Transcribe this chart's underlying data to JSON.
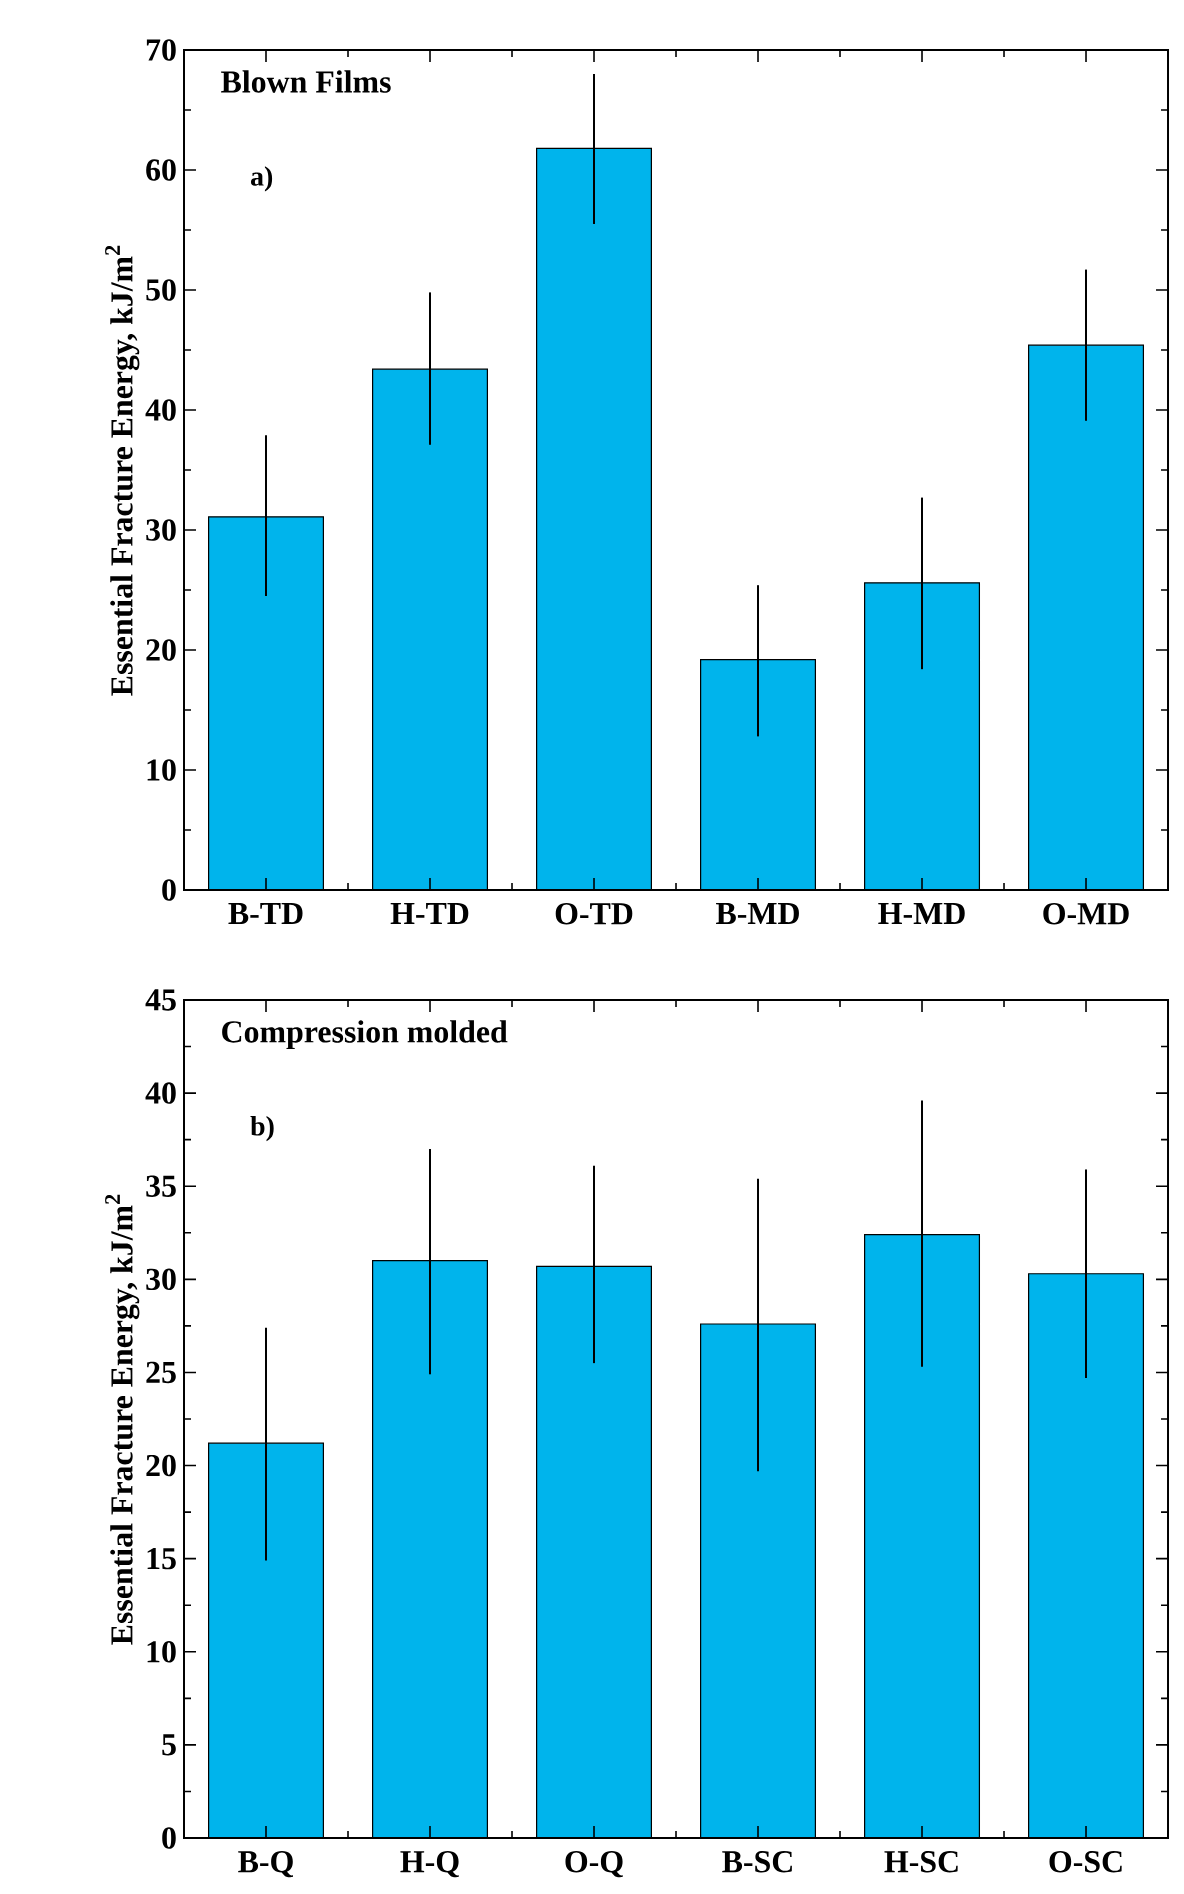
{
  "chart_data": [
    {
      "type": "bar",
      "title": "Blown Films",
      "ylabel": "Essential Fracture Energy, kJ/m$^{2}$",
      "annotations": [
        "a)"
      ],
      "categories": [
        "B-TD",
        "H-TD",
        "O-TD",
        "B-MD",
        "H-MD",
        "O-MD"
      ],
      "values": [
        31.1,
        43.4,
        61.8,
        19.2,
        25.6,
        45.4
      ],
      "errors": [
        [
          24.5,
          37.9
        ],
        [
          37.1,
          49.8
        ],
        [
          55.5,
          68.0
        ],
        [
          12.8,
          25.4
        ],
        [
          18.4,
          32.7
        ],
        [
          39.1,
          51.7
        ]
      ],
      "color": "#00b4ec",
      "ylim": [
        0,
        70
      ],
      "yticks": [
        0,
        10,
        20,
        30,
        40,
        50,
        60,
        70
      ]
    },
    {
      "type": "bar",
      "title": "Compression molded",
      "ylabel": "Essential Fracture Energy, kJ/m$^{2}$",
      "annotations": [
        "b)"
      ],
      "categories": [
        "B-Q",
        "H-Q",
        "O-Q",
        "B-SC",
        "H-SC",
        "O-SC"
      ],
      "values": [
        21.2,
        31.0,
        30.7,
        27.6,
        32.4,
        30.3
      ],
      "errors": [
        [
          14.9,
          27.4
        ],
        [
          24.9,
          37.0
        ],
        [
          25.5,
          36.1
        ],
        [
          19.7,
          35.4
        ],
        [
          25.3,
          39.6
        ],
        [
          24.7,
          35.9
        ]
      ],
      "color": "#00b4ec",
      "ylim": [
        0,
        45
      ],
      "yticks": [
        0,
        5,
        10,
        15,
        20,
        25,
        30,
        35,
        40,
        45
      ]
    }
  ]
}
